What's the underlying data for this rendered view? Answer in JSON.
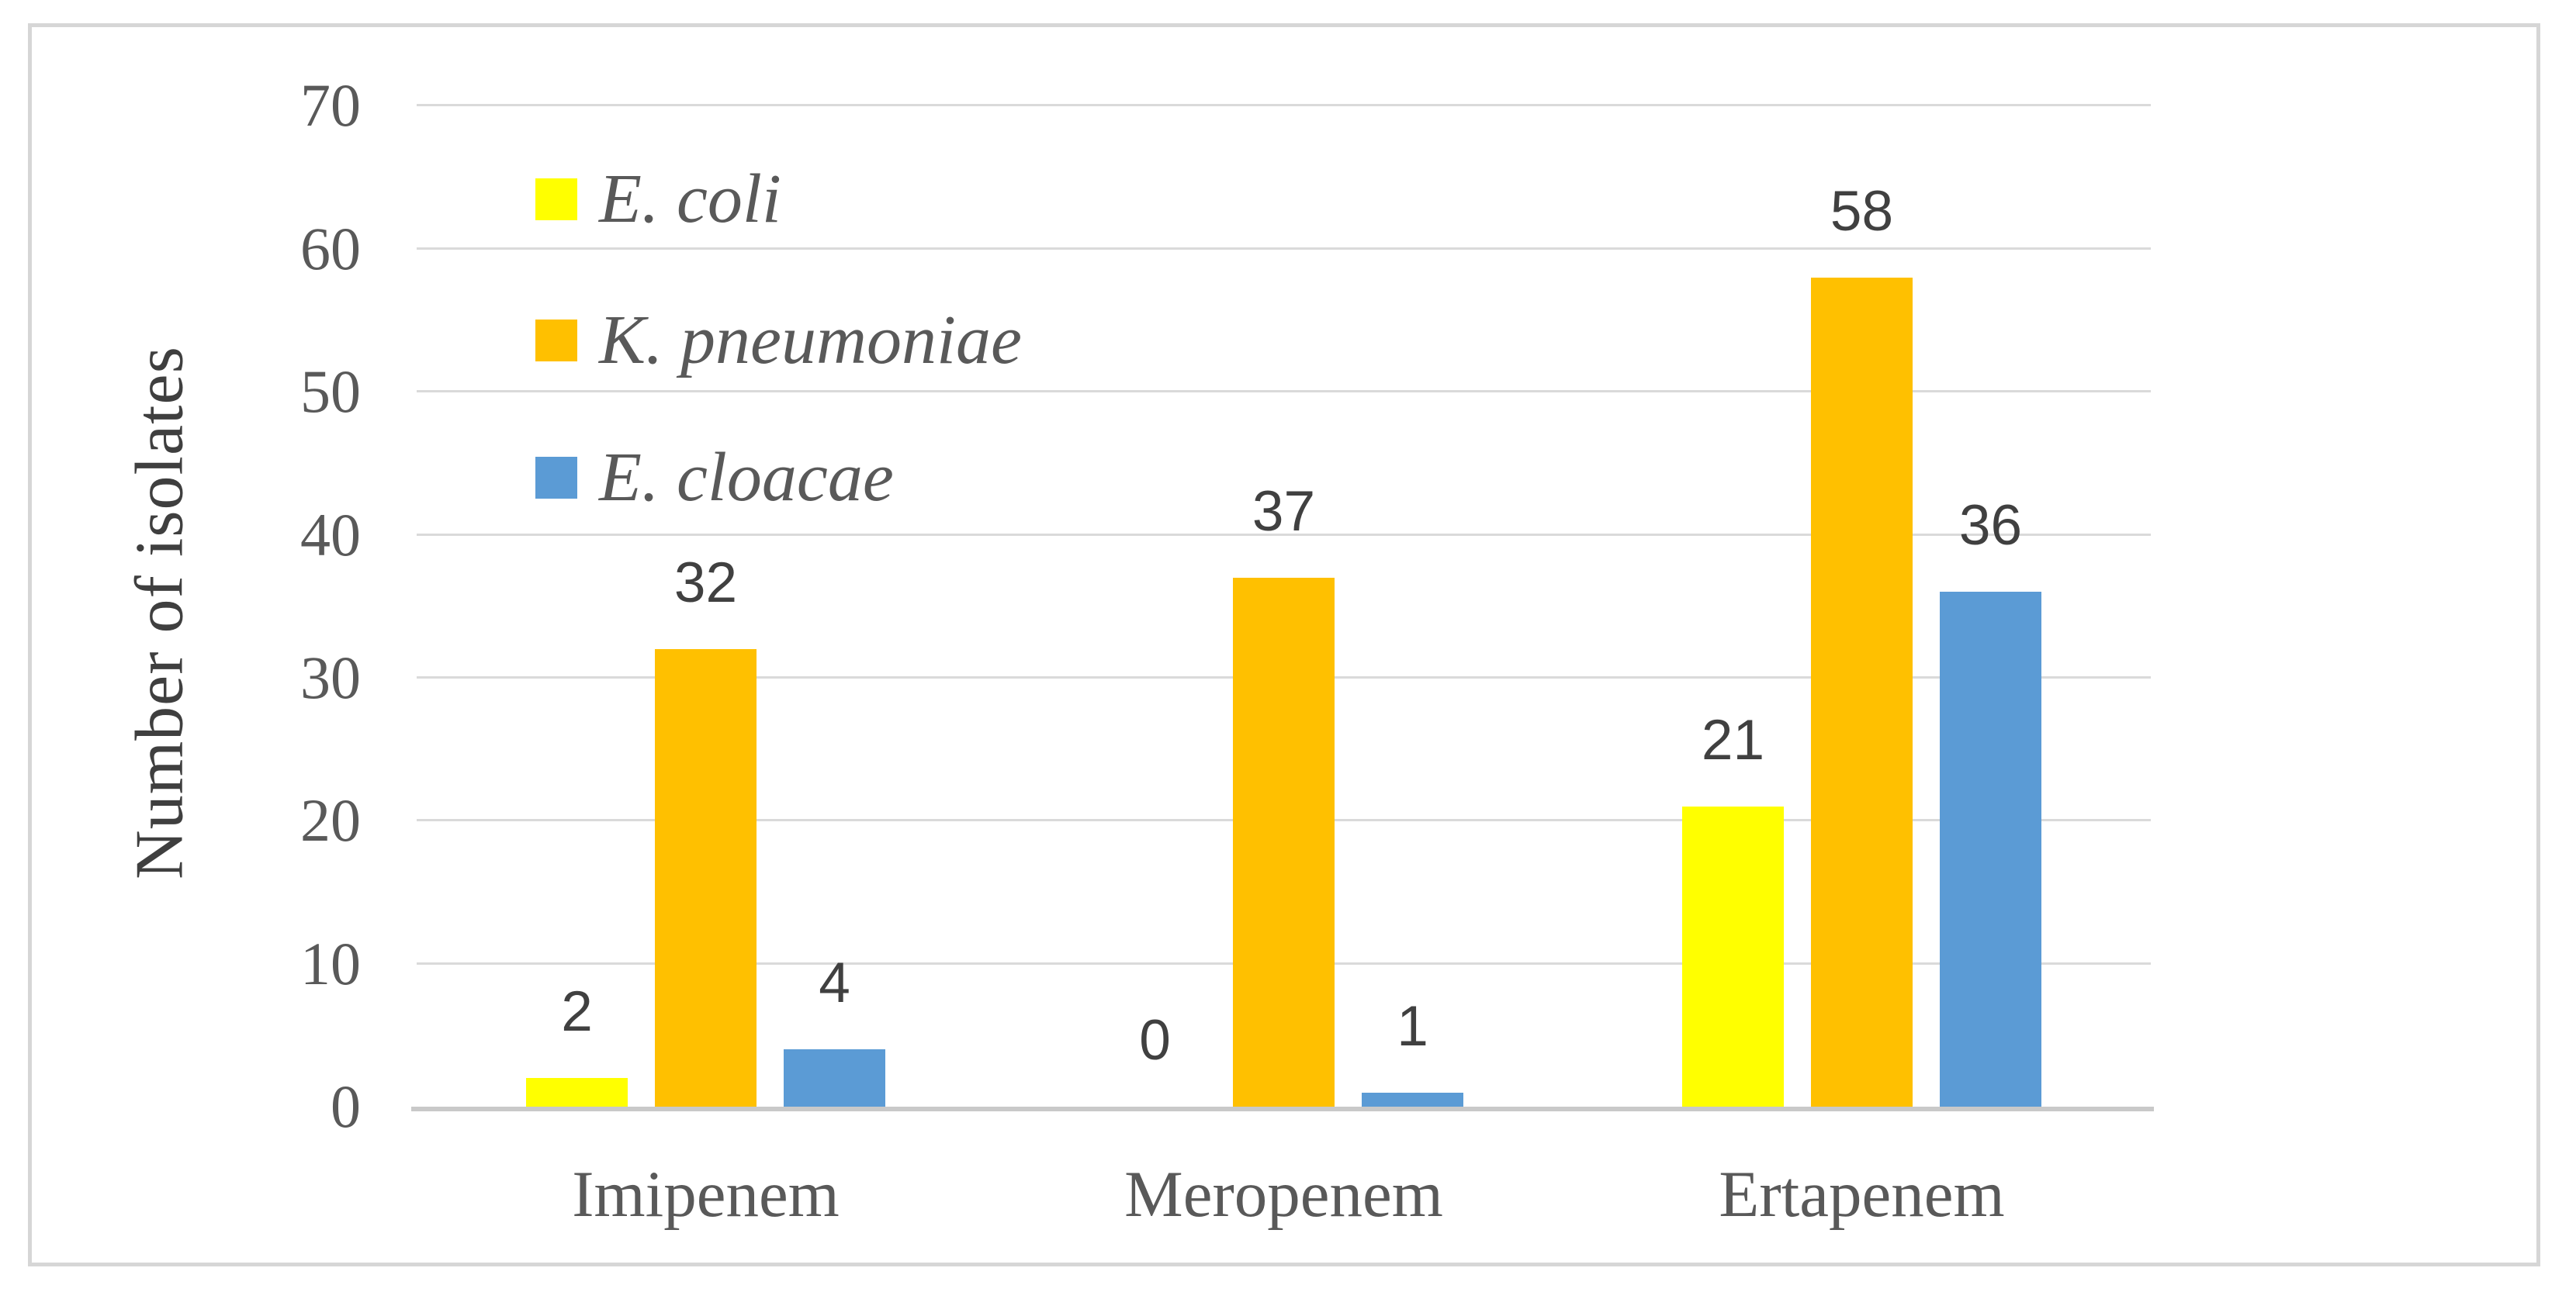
{
  "figure": {
    "y_axis_title": "Number of isolates"
  },
  "chart_data": {
    "type": "bar",
    "title": "",
    "categories": [
      "Imipenem",
      "Meropenem",
      "Ertapenem"
    ],
    "series": [
      {
        "name": "E. coli",
        "color": "#FFFF00",
        "values": [
          2,
          0,
          21
        ]
      },
      {
        "name": "K. pneumoniae",
        "color": "#FFC000",
        "values": [
          32,
          37,
          58
        ]
      },
      {
        "name": "E. cloacae",
        "color": "#5B9BD5",
        "values": [
          4,
          1,
          36
        ]
      }
    ],
    "xlabel": "",
    "ylabel": "Number of isolates",
    "ylim": [
      0,
      70
    ],
    "yticks": [
      0,
      10,
      20,
      30,
      40,
      50,
      60,
      70
    ],
    "grid": true,
    "data_labels": true,
    "legend_position": "upper-left-inside",
    "legend_entries": [
      "E. coli",
      "K. pneumoniae",
      "E. cloacae"
    ]
  },
  "colors": {
    "grid": "#dadada",
    "axis_line": "#c9c9c9",
    "frame_border": "#d6d6d6",
    "tick_text": "#595959",
    "data_label_text": "#404040",
    "background": "#ffffff"
  }
}
